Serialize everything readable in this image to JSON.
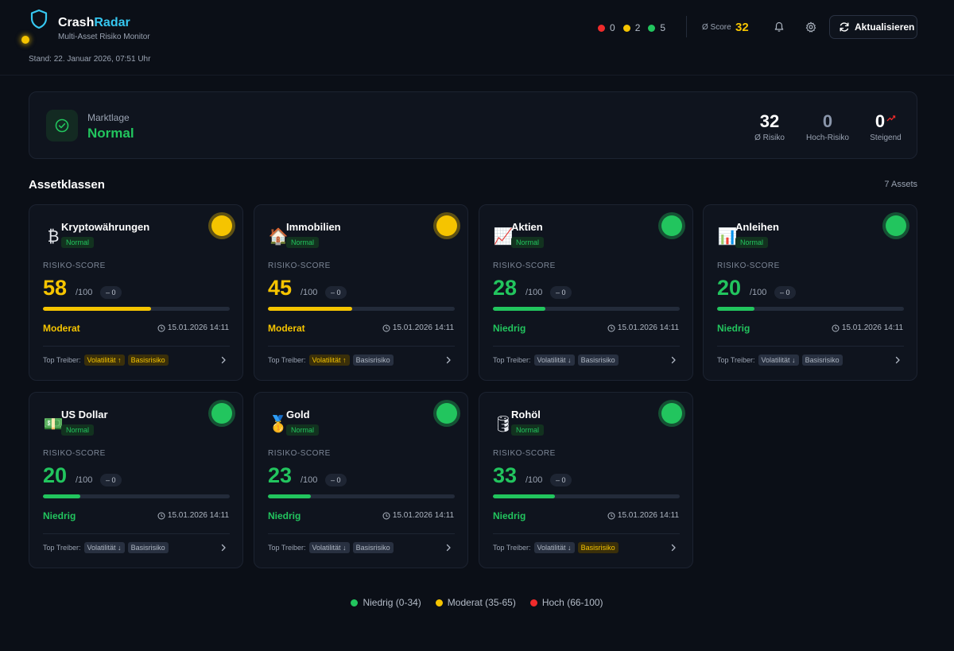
{
  "app": {
    "brand_part1": "Crash",
    "brand_part2": "Radar",
    "subtitle": "Multi-Asset Risiko Monitor",
    "stand": "Stand: 22. Januar 2026, 07:51 Uhr"
  },
  "colors": {
    "red": "#ef2b2b",
    "yellow": "#f5c400",
    "green": "#22c55e",
    "accent": "#36c7f0",
    "background": "#0b0f17"
  },
  "header": {
    "counts": [
      {
        "name": "red",
        "value": "0"
      },
      {
        "name": "yellow",
        "value": "2"
      },
      {
        "name": "green",
        "value": "5"
      }
    ],
    "score_label": "Ø Score",
    "score_value": "32",
    "bell_icon": "bell-icon",
    "settings_icon": "gear-icon",
    "refresh_label": "Aktualisieren"
  },
  "market": {
    "label": "Marktlage",
    "value": "Normal",
    "icon": "check-circle-icon",
    "stats": [
      {
        "num": "32",
        "label": "Ø Risiko"
      },
      {
        "num": "0",
        "label": "Hoch-Risiko"
      },
      {
        "num": "0",
        "label": "Steigend"
      }
    ]
  },
  "section": {
    "title": "Assetklassen",
    "count": "7 Assets"
  },
  "card_common": {
    "risk_label": "RISIKO-SCORE",
    "max": "/100",
    "delta": "– 0",
    "drivers_label": "Top Treiber:"
  },
  "cards": [
    {
      "id": "crypto",
      "name": "Kryptowährungen",
      "icon": "bitcoin-icon",
      "glyph": "₿",
      "status": "Normal",
      "score": "58",
      "score_fraction": 0.58,
      "level": "Moderat",
      "color": "yellow",
      "time": "15.01.2026 14:11",
      "drivers": [
        {
          "label": "Volatilität ↑",
          "tone": "yellow"
        },
        {
          "label": "Basisrisiko",
          "tone": "yellow"
        }
      ]
    },
    {
      "id": "realestate",
      "name": "Immobilien",
      "icon": "house-icon",
      "glyph": "🏠",
      "status": "Normal",
      "score": "45",
      "score_fraction": 0.45,
      "level": "Moderat",
      "color": "yellow",
      "time": "15.01.2026 14:11",
      "drivers": [
        {
          "label": "Volatilität ↑",
          "tone": "yellow"
        },
        {
          "label": "Basisrisiko",
          "tone": "gray"
        }
      ]
    },
    {
      "id": "stocks",
      "name": "Aktien",
      "icon": "chart-up-icon",
      "glyph": "📈",
      "status": "Normal",
      "score": "28",
      "score_fraction": 0.28,
      "level": "Niedrig",
      "color": "green",
      "time": "15.01.2026 14:11",
      "drivers": [
        {
          "label": "Volatilität ↓",
          "tone": "gray"
        },
        {
          "label": "Basisrisiko",
          "tone": "gray"
        }
      ]
    },
    {
      "id": "bonds",
      "name": "Anleihen",
      "icon": "bar-chart-icon",
      "glyph": "📊",
      "status": "Normal",
      "score": "20",
      "score_fraction": 0.2,
      "level": "Niedrig",
      "color": "green",
      "time": "15.01.2026 14:11",
      "drivers": [
        {
          "label": "Volatilität ↓",
          "tone": "gray"
        },
        {
          "label": "Basisrisiko",
          "tone": "gray"
        }
      ]
    },
    {
      "id": "usd",
      "name": "US Dollar",
      "icon": "banknote-icon",
      "glyph": "💵",
      "status": "Normal",
      "score": "20",
      "score_fraction": 0.2,
      "level": "Niedrig",
      "color": "green",
      "time": "15.01.2026 14:11",
      "drivers": [
        {
          "label": "Volatilität ↓",
          "tone": "gray"
        },
        {
          "label": "Basisrisiko",
          "tone": "gray"
        }
      ]
    },
    {
      "id": "gold",
      "name": "Gold",
      "icon": "medal-icon",
      "glyph": "🥇",
      "status": "Normal",
      "score": "23",
      "score_fraction": 0.23,
      "level": "Niedrig",
      "color": "green",
      "time": "15.01.2026 14:11",
      "drivers": [
        {
          "label": "Volatilität ↓",
          "tone": "gray"
        },
        {
          "label": "Basisrisiko",
          "tone": "gray"
        }
      ]
    },
    {
      "id": "oil",
      "name": "Rohöl",
      "icon": "oil-barrel-icon",
      "glyph": "🛢",
      "status": "Normal",
      "score": "33",
      "score_fraction": 0.33,
      "level": "Niedrig",
      "color": "green",
      "time": "15.01.2026 14:11",
      "drivers": [
        {
          "label": "Volatilität ↓",
          "tone": "gray"
        },
        {
          "label": "Basisrisiko",
          "tone": "yellow"
        }
      ]
    }
  ],
  "legend": [
    {
      "label": "Niedrig (0-34)",
      "color": "green"
    },
    {
      "label": "Moderat (35-65)",
      "color": "yellow"
    },
    {
      "label": "Hoch (66-100)",
      "color": "red"
    }
  ]
}
